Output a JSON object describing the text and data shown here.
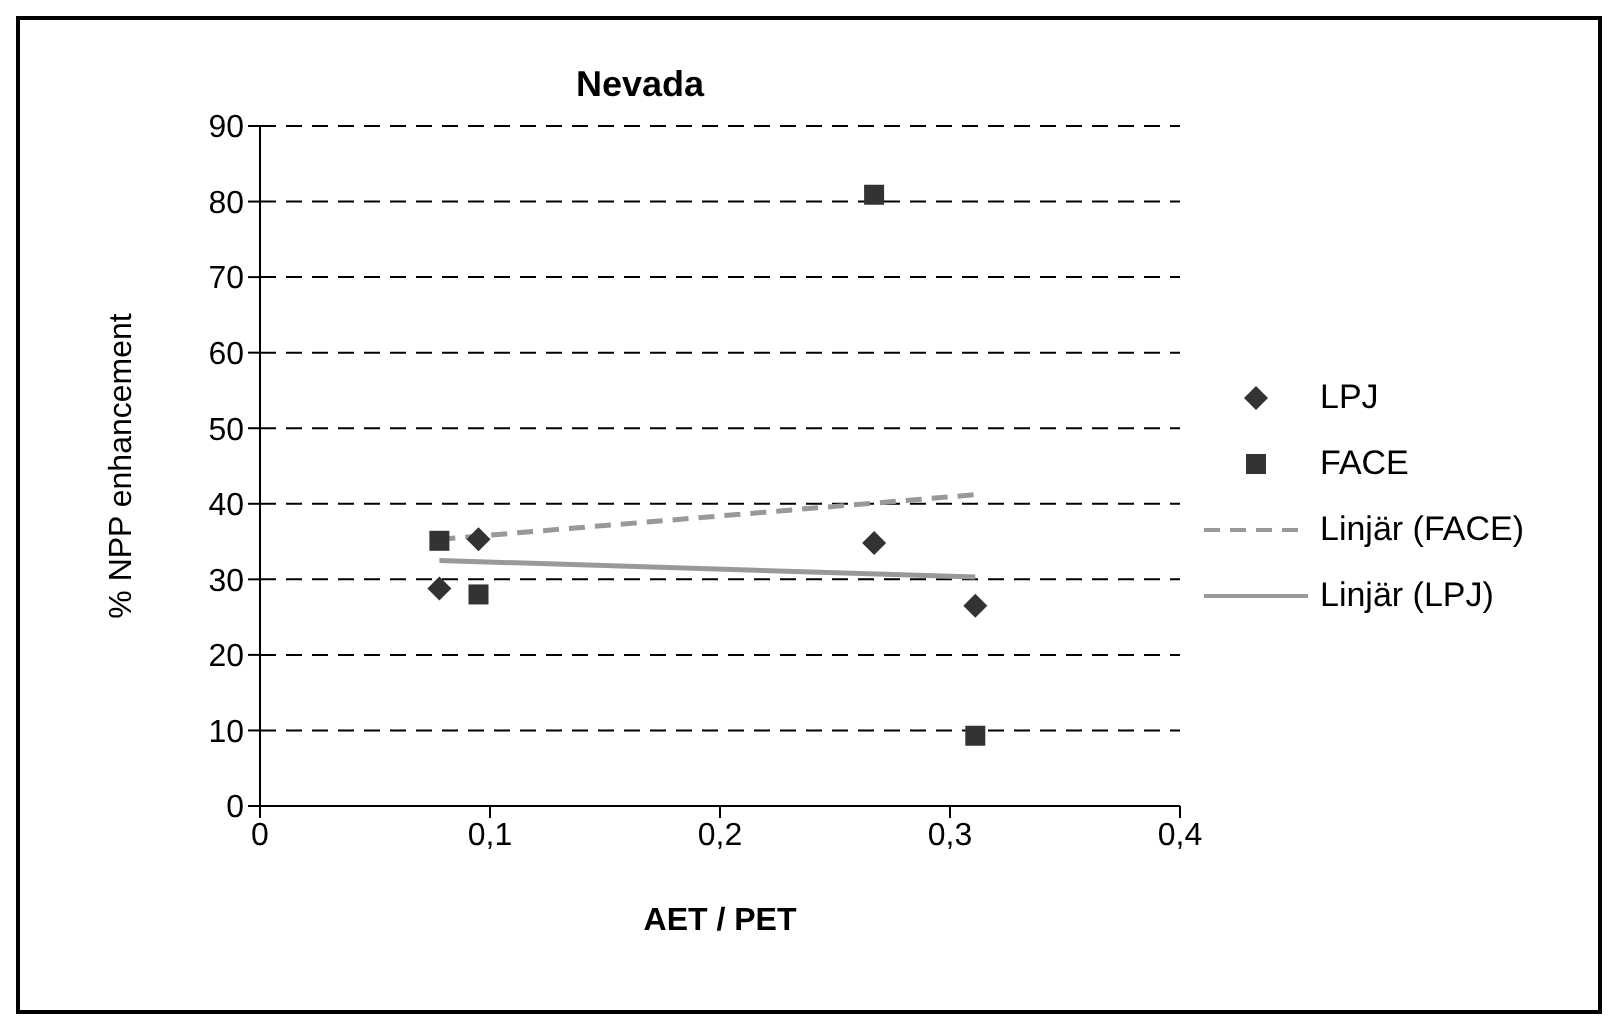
{
  "chart_data": {
    "type": "scatter",
    "title": "Nevada",
    "xlabel": "AET / PET",
    "ylabel": "% NPP enhancement",
    "xlim": [
      0,
      0.4
    ],
    "xticks": [
      {
        "value": 0,
        "label": "0"
      },
      {
        "value": 0.1,
        "label": "0,1"
      },
      {
        "value": 0.2,
        "label": "0,2"
      },
      {
        "value": 0.3,
        "label": "0,3"
      },
      {
        "value": 0.4,
        "label": "0,4"
      }
    ],
    "ylim": [
      0,
      90
    ],
    "yticks": [
      0,
      10,
      20,
      30,
      40,
      50,
      60,
      70,
      80,
      90
    ],
    "grid": "y",
    "legend": "right",
    "series": [
      {
        "name": "LPJ",
        "marker": "diamond",
        "color": "#333333",
        "x": [
          0.078,
          0.095,
          0.267,
          0.311
        ],
        "values": [
          28.8,
          35.3,
          34.8,
          26.5
        ]
      },
      {
        "name": "FACE",
        "marker": "square",
        "color": "#333333",
        "x": [
          0.078,
          0.095,
          0.267,
          0.311
        ],
        "values": [
          35.1,
          28.0,
          80.9,
          9.3
        ]
      },
      {
        "name": "Linjär (FACE)",
        "type": "line",
        "line_style": "dashed",
        "color": "#999999",
        "x": [
          0.078,
          0.311
        ],
        "values": [
          35.3,
          41.2
        ]
      },
      {
        "name": "Linjär (LPJ)",
        "type": "line",
        "line_style": "solid",
        "color": "#999999",
        "x": [
          0.078,
          0.311
        ],
        "values": [
          32.5,
          30.3
        ]
      }
    ]
  }
}
